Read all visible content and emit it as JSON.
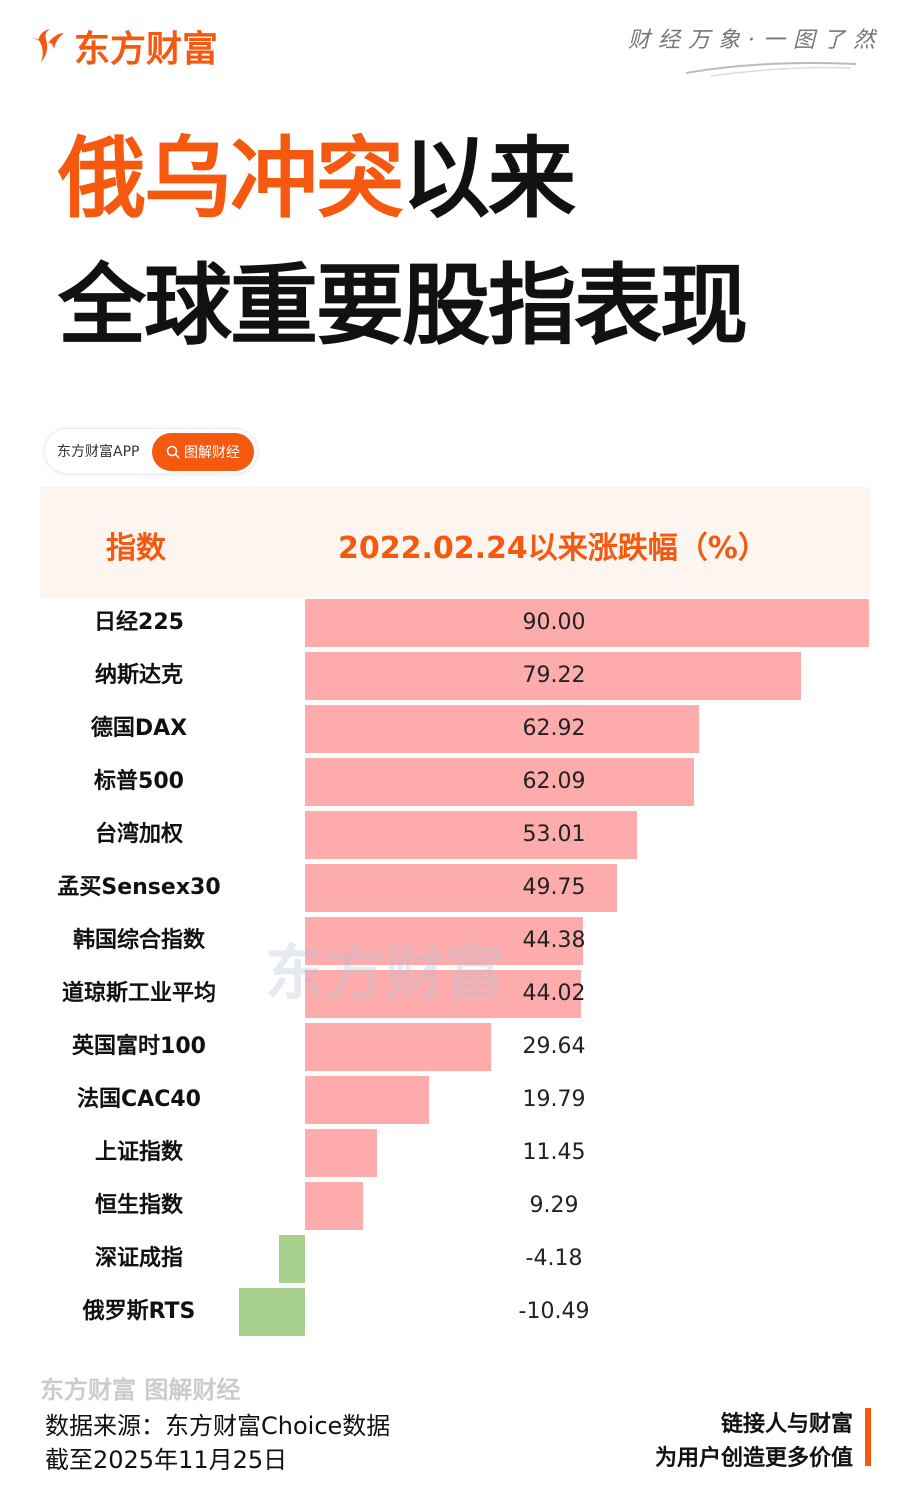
{
  "brand": {
    "name": "东方财富",
    "slogan": "财经万象·一图了然"
  },
  "title": {
    "line1_highlight": "俄乌冲突",
    "line1_rest": "以来",
    "line2": "全球重要股指表现"
  },
  "pill": {
    "app": "东方财富APP",
    "button": "图解财经"
  },
  "chart_data": {
    "type": "bar",
    "orientation": "horizontal",
    "headers": [
      "指数",
      "2022.02.24以来涨跌幅（%）"
    ],
    "categories": [
      "日经225",
      "纳斯达克",
      "德国DAX",
      "标普500",
      "台湾加权",
      "孟买Sensex30",
      "韩国综合指数",
      "道琼斯工业平均",
      "英国富时100",
      "法国CAC40",
      "上证指数",
      "恒生指数",
      "深证成指",
      "俄罗斯RTS"
    ],
    "values": [
      90.0,
      79.22,
      62.92,
      62.09,
      53.01,
      49.75,
      44.38,
      44.02,
      29.64,
      19.79,
      11.45,
      9.29,
      -4.18,
      -10.49
    ],
    "value_labels": [
      "90.00",
      "79.22",
      "62.92",
      "62.09",
      "53.01",
      "49.75",
      "44.38",
      "44.02",
      "29.64",
      "19.79",
      "11.45",
      "9.29",
      "-4.18",
      "-10.49"
    ],
    "colors": {
      "positive": "#fdabab",
      "negative": "#a8d08d"
    }
  },
  "watermark": "东方财富",
  "footer": {
    "watermark": "东方财富 图解财经",
    "source": "数据来源：东方财富Choice数据",
    "date": "截至2025年11月25日",
    "tagline1": "链接人与财富",
    "tagline2": "为用户创造更多价值"
  }
}
